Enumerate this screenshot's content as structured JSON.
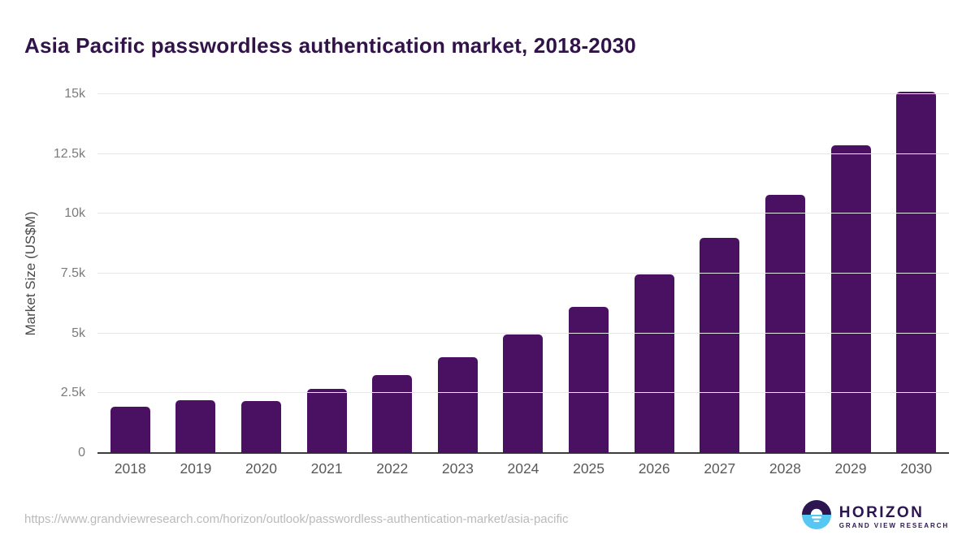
{
  "title": "Asia Pacific passwordless authentication market, 2018-2030",
  "chart_data": {
    "type": "bar",
    "title": "Asia Pacific passwordless authentication market, 2018-2030",
    "categories": [
      "2018",
      "2019",
      "2020",
      "2021",
      "2022",
      "2023",
      "2024",
      "2025",
      "2026",
      "2027",
      "2028",
      "2029",
      "2030"
    ],
    "values": [
      1950,
      2200,
      2170,
      2680,
      3250,
      4000,
      4950,
      6100,
      7450,
      9000,
      10800,
      12850,
      15100
    ],
    "xlabel": "",
    "ylabel": "Market Size (US$M)",
    "ylim": [
      0,
      15000
    ],
    "yticks": [
      {
        "value": 0,
        "label": "0"
      },
      {
        "value": 2500,
        "label": "2.5k"
      },
      {
        "value": 5000,
        "label": "5k"
      },
      {
        "value": 7500,
        "label": "7.5k"
      },
      {
        "value": 10000,
        "label": "10k"
      },
      {
        "value": 12500,
        "label": "12.5k"
      },
      {
        "value": 15000,
        "label": "15k"
      }
    ],
    "grid": true,
    "legend": false,
    "bar_color": "#4a1162"
  },
  "colors": {
    "title": "#311349",
    "bar": "#4a1162",
    "gridline": "#e7e7e7",
    "axis_line": "#3d3d3d",
    "ytick": "#7b7b7b",
    "xtick": "#595959",
    "url_text": "#bababa",
    "logo_purple": "#2d1550",
    "logo_blue": "#56c7f2"
  },
  "footer": {
    "source_url": "https://www.grandviewresearch.com/horizon/outlook/passwordless-authentication-market/asia-pacific",
    "logo": {
      "name": "HORIZON",
      "subtitle": "GRAND VIEW RESEARCH",
      "icon": "horizon-sun-over-water-icon"
    }
  }
}
